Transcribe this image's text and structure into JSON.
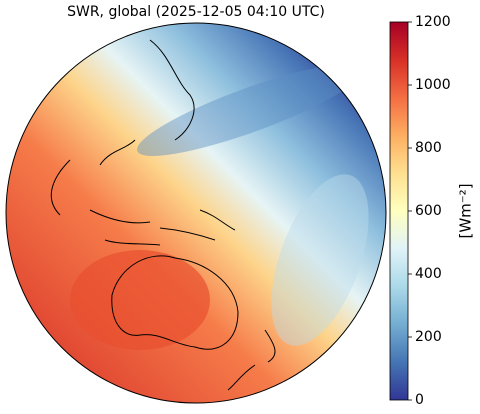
{
  "title": "SWR, global (2025-12-05 04:10 UTC)",
  "colorbar": {
    "label": "[Wm⁻²]",
    "lim": [
      0,
      1200
    ],
    "ticks": [
      0,
      200,
      400,
      600,
      800,
      1000,
      1200
    ],
    "colors": [
      "#313695",
      "#4575b4",
      "#74add1",
      "#abd9e9",
      "#e0f3f8",
      "#ffffbf",
      "#fee090",
      "#fdae61",
      "#f46d43",
      "#d73027",
      "#a50026"
    ]
  }
}
